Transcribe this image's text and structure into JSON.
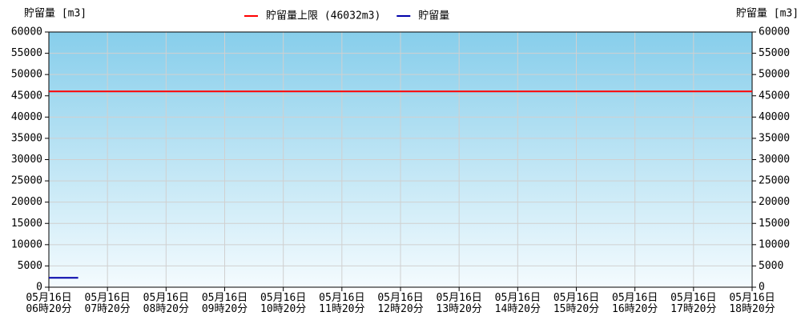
{
  "chart_data": {
    "type": "line",
    "y_axis_label": "貯留量 [m3]",
    "y2_axis_label": "貯留量 [m3]",
    "categories": [
      [
        "05月16日",
        "06時20分"
      ],
      [
        "05月16日",
        "07時20分"
      ],
      [
        "05月16日",
        "08時20分"
      ],
      [
        "05月16日",
        "09時20分"
      ],
      [
        "05月16日",
        "10時20分"
      ],
      [
        "05月16日",
        "11時20分"
      ],
      [
        "05月16日",
        "12時20分"
      ],
      [
        "05月16日",
        "13時20分"
      ],
      [
        "05月16日",
        "14時20分"
      ],
      [
        "05月16日",
        "15時20分"
      ],
      [
        "05月16日",
        "16時20分"
      ],
      [
        "05月16日",
        "17時20分"
      ],
      [
        "05月16日",
        "18時20分"
      ]
    ],
    "series": [
      {
        "name": "貯留量上限 (46032m3)",
        "color": "#ff0000",
        "values": [
          46032,
          46032,
          46032,
          46032,
          46032,
          46032,
          46032,
          46032,
          46032,
          46032,
          46032,
          46032,
          46032
        ]
      },
      {
        "name": "貯留量",
        "color": "#0000aa",
        "x": [
          "06時20分",
          "06時30分",
          "06時40分",
          "06時50分"
        ],
        "values": [
          2200,
          2200,
          2200,
          2200
        ]
      }
    ],
    "ylim": [
      0,
      60000
    ],
    "yticks": [
      0,
      5000,
      10000,
      15000,
      20000,
      25000,
      30000,
      35000,
      40000,
      45000,
      50000,
      55000,
      60000
    ],
    "grid": true
  }
}
